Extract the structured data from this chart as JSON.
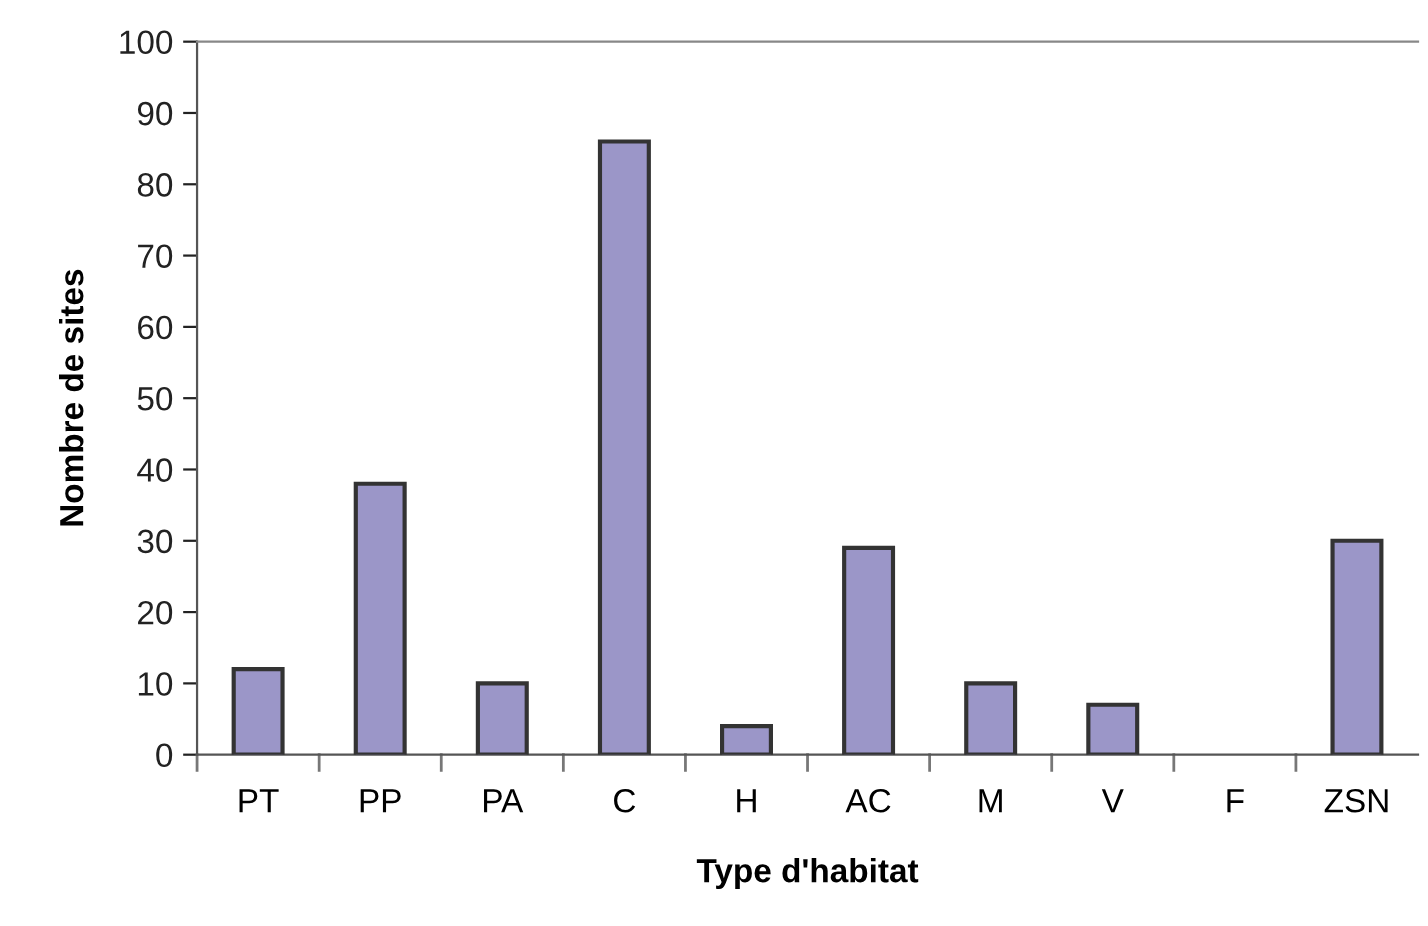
{
  "chart_data": {
    "type": "bar",
    "xlabel": "Type d'habitat",
    "ylabel": "Nombre de sites",
    "categories": [
      "PT",
      "PP",
      "PA",
      "C",
      "H",
      "AC",
      "M",
      "V",
      "F",
      "ZSN"
    ],
    "values": [
      12,
      38,
      10,
      86,
      4,
      29,
      10,
      7,
      0,
      30
    ],
    "color": "#9b96c8",
    "ylim": [
      0,
      100
    ],
    "yticks": [
      0,
      10,
      20,
      30,
      40,
      50,
      60,
      70,
      80,
      90,
      100
    ],
    "grid": false,
    "legend": false
  }
}
